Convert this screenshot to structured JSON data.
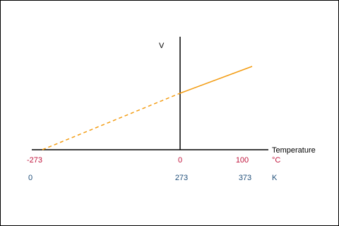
{
  "axes": {
    "y_label": "V",
    "x_label": "Temperature"
  },
  "celsius": {
    "ticks": [
      "-273",
      "0",
      "100"
    ],
    "unit": "°C"
  },
  "kelvin": {
    "ticks": [
      "0",
      "273",
      "373"
    ],
    "unit": "K"
  }
}
